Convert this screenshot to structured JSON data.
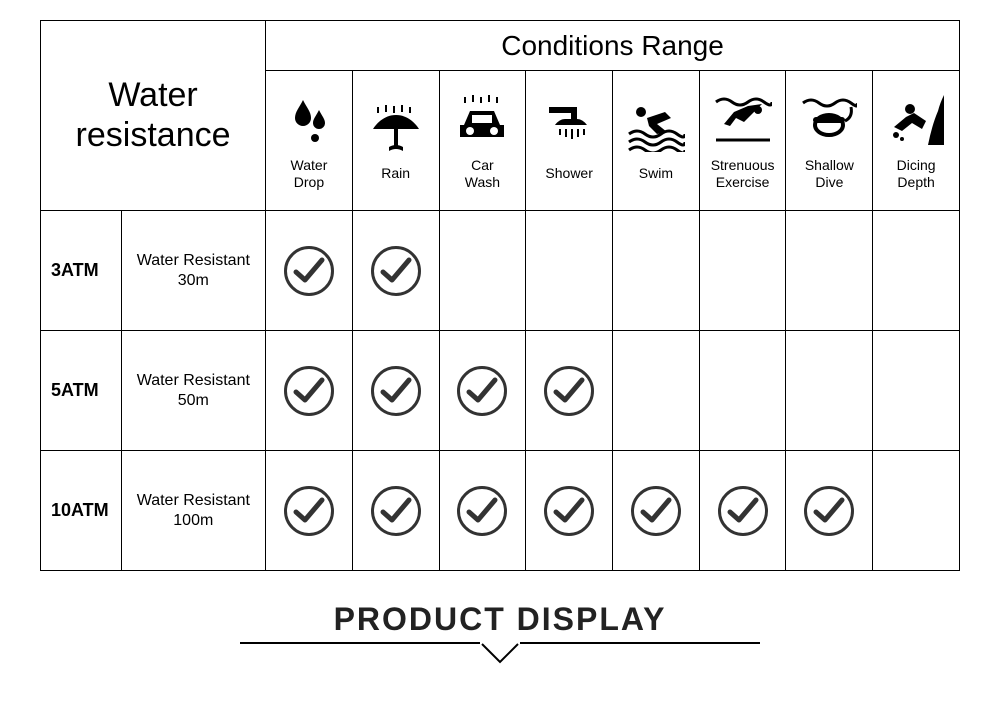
{
  "header": {
    "water_resistance": "Water\nresistance",
    "conditions_range": "Conditions Range"
  },
  "conditions": [
    {
      "key": "water-drop",
      "label": "Water\nDrop",
      "icon": "drops"
    },
    {
      "key": "rain",
      "label": "Rain",
      "icon": "rain"
    },
    {
      "key": "car-wash",
      "label": "Car\nWash",
      "icon": "carwash"
    },
    {
      "key": "shower",
      "label": "Shower",
      "icon": "shower"
    },
    {
      "key": "swim",
      "label": "Swim",
      "icon": "swim"
    },
    {
      "key": "strenuous-exercise",
      "label": "Strenuous\nExercise",
      "icon": "dive"
    },
    {
      "key": "shallow-dive",
      "label": "Shallow\nDive",
      "icon": "snorkel"
    },
    {
      "key": "diving-depth",
      "label": "Dicing\nDepth",
      "icon": "scuba"
    }
  ],
  "rows": [
    {
      "atm": "3ATM",
      "desc": "Water Resistant\n30m",
      "checks": [
        true,
        true,
        false,
        false,
        false,
        false,
        false,
        false
      ]
    },
    {
      "atm": "5ATM",
      "desc": "Water Resistant\n50m",
      "checks": [
        true,
        true,
        true,
        true,
        false,
        false,
        false,
        false
      ]
    },
    {
      "atm": "10ATM",
      "desc": "Water Resistant\n100m",
      "checks": [
        true,
        true,
        true,
        true,
        true,
        true,
        true,
        false
      ]
    }
  ],
  "footer": {
    "title": "PRODUCT DISPLAY"
  },
  "colors": {
    "border": "#000000",
    "icon": "#000000",
    "check_stroke": "#333333",
    "bg": "#ffffff"
  }
}
